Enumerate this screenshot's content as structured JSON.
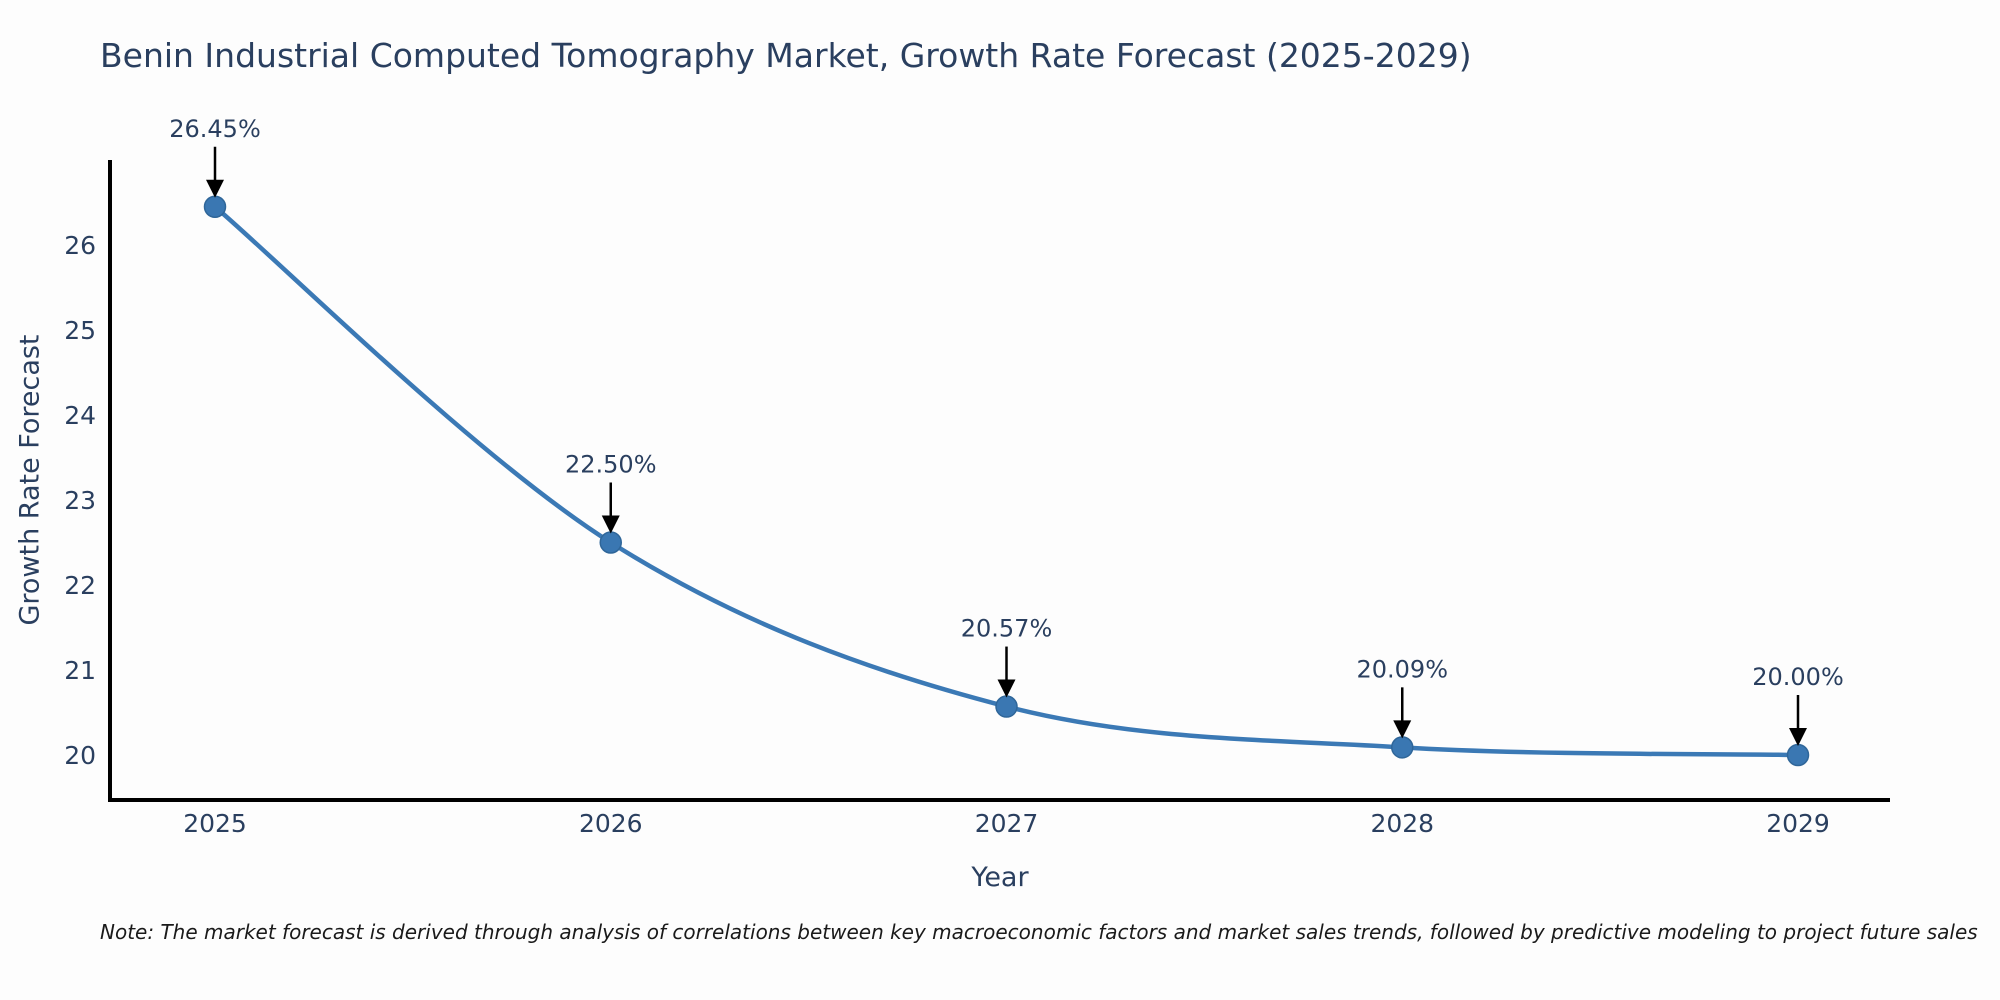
{
  "title": "Benin Industrial Computed Tomography Market, Growth Rate Forecast (2025-2029)",
  "note": "Note: The market forecast is derived through analysis of correlations between key macroeconomic factors and market sales trends, followed by predictive modeling to project future sales",
  "chart_data": {
    "type": "line",
    "title": "Benin Industrial Computed Tomography Market, Growth Rate Forecast (2025-2029)",
    "x": [
      2025,
      2026,
      2027,
      2028,
      2029
    ],
    "values": [
      26.45,
      22.5,
      20.57,
      20.09,
      20.0
    ],
    "point_labels": [
      "26.45%",
      "22.50%",
      "20.57%",
      "20.09%",
      "20.00%"
    ],
    "xlabel": "Year",
    "ylabel": "Growth Rate Forecast",
    "yticks": [
      20,
      21,
      22,
      23,
      24,
      25,
      26
    ],
    "ylim": [
      19.47,
      27.0
    ],
    "grid": false,
    "legend": "none",
    "line_shape": "spline",
    "annotation_style": "black-arrow-down-to-point",
    "colors": {
      "line": "#3b79b5",
      "marker_fill": "#3a77b2",
      "marker_edge": "#2f6699",
      "axis": "#000000",
      "tick_text": "#2a3f5f",
      "title_text": "#2a3f5f",
      "annotation_text": "#2a3f5f",
      "annotation_arrow": "#000000",
      "background": "#fdfdfd"
    }
  }
}
